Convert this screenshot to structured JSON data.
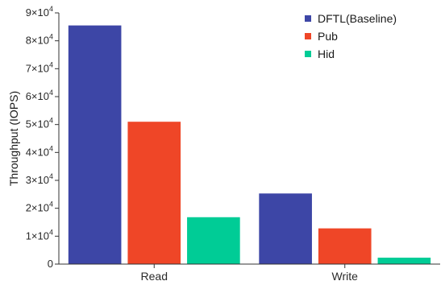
{
  "chart_data": {
    "type": "bar",
    "title": "",
    "xlabel": "",
    "ylabel": "Throughput (IOPS)",
    "categories": [
      "Read",
      "Write"
    ],
    "series": [
      {
        "name": "DFTL(Baseline)",
        "color": "#3d46a6",
        "values": [
          85500,
          25300
        ]
      },
      {
        "name": "Pub",
        "color": "#ef4627",
        "values": [
          51000,
          12800
        ]
      },
      {
        "name": "Hid",
        "color": "#00cc96",
        "values": [
          16800,
          2300
        ]
      }
    ],
    "ylim": [
      0,
      90000
    ],
    "yticks": [
      {
        "value": 0,
        "mantissa": "0",
        "exponent": ""
      },
      {
        "value": 10000,
        "mantissa": "1×10",
        "exponent": "4"
      },
      {
        "value": 20000,
        "mantissa": "2×10",
        "exponent": "4"
      },
      {
        "value": 30000,
        "mantissa": "3×10",
        "exponent": "4"
      },
      {
        "value": 40000,
        "mantissa": "4×10",
        "exponent": "4"
      },
      {
        "value": 50000,
        "mantissa": "5×10",
        "exponent": "4"
      },
      {
        "value": 60000,
        "mantissa": "6×10",
        "exponent": "4"
      },
      {
        "value": 70000,
        "mantissa": "7×10",
        "exponent": "4"
      },
      {
        "value": 80000,
        "mantissa": "8×10",
        "exponent": "4"
      },
      {
        "value": 90000,
        "mantissa": "9×10",
        "exponent": "4"
      }
    ],
    "grid": false,
    "legend_position": "top-right"
  }
}
